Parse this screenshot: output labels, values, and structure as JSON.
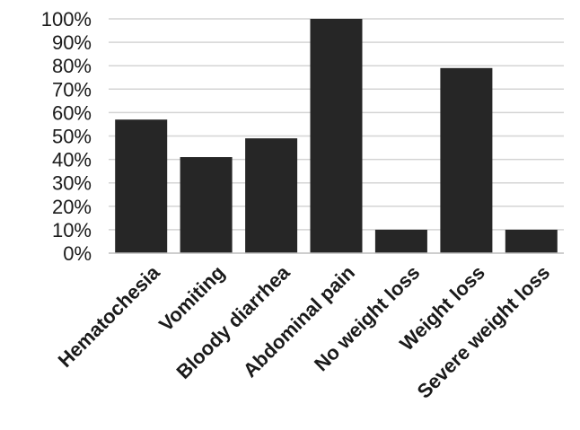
{
  "chart_data": {
    "type": "bar",
    "title": "",
    "xlabel": "",
    "ylabel": "",
    "categories": [
      "Hematochesia",
      "Vomiting",
      "Bloody diarrhea",
      "Abdominal pain",
      "No weight loss",
      "Weight loss",
      "Severe weight loss"
    ],
    "values": [
      57,
      41,
      49,
      100,
      10,
      79,
      10
    ],
    "ylim": [
      0,
      100
    ],
    "yticks": [
      "0%",
      "10%",
      "20%",
      "30%",
      "40%",
      "50%",
      "60%",
      "70%",
      "80%",
      "90%",
      "100%"
    ],
    "grid": true,
    "bar_color": "#262626"
  }
}
